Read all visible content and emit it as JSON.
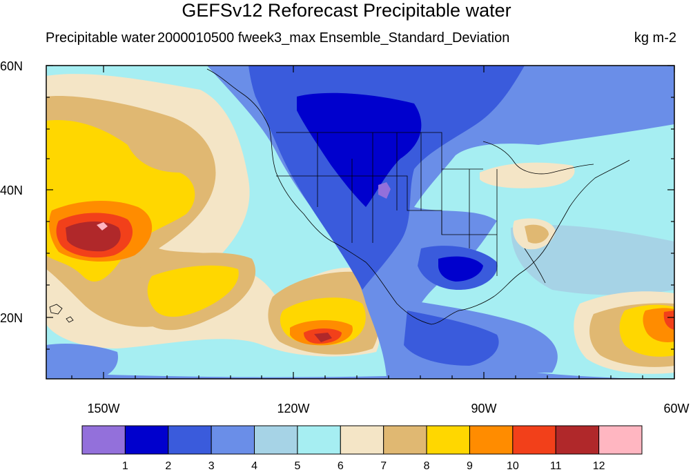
{
  "title": "GEFSv12 Reforecast Precipitable water",
  "subtitle_left": "Precipitable water",
  "subtitle_center": "2000010500 fweek3_max Ensemble_Standard_Deviation",
  "units": "kg m-2",
  "lat_labels": [
    "60N",
    "40N",
    "20N"
  ],
  "lon_labels": [
    "150W",
    "120W",
    "90W",
    "60W"
  ],
  "map_extent": {
    "lon_min": -159,
    "lon_max": -60,
    "lat_min": 10,
    "lat_max": 60
  },
  "colorbar": {
    "labels": [
      "1",
      "2",
      "3",
      "4",
      "5",
      "6",
      "7",
      "8",
      "9",
      "10",
      "11",
      "12"
    ],
    "colors": [
      "#9370db",
      "#0000cd",
      "#3a5bdc",
      "#6a8ee8",
      "#a6d3e6",
      "#a6eef2",
      "#f4e5c6",
      "#e0b872",
      "#ffd700",
      "#ff8c00",
      "#f2401a",
      "#b0282a",
      "#ffb6c1"
    ]
  }
}
